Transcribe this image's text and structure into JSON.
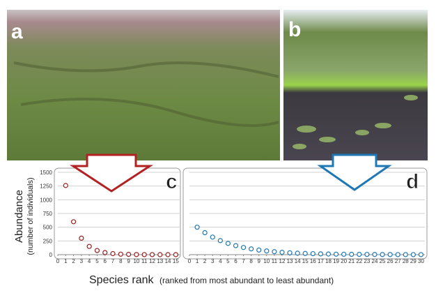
{
  "figure": {
    "photo_labels": [
      "a",
      "b"
    ],
    "xlabel": "Species rank",
    "xlabel_note": "(ranked from most abundant to least abundant)",
    "ylabel": "Abundance",
    "ylabel_note": "(number of individuals)"
  },
  "chart_data": [
    {
      "type": "line",
      "panel_label": "c",
      "x": [
        1,
        2,
        3,
        4,
        5,
        6,
        7,
        8,
        9,
        10,
        11,
        12,
        13,
        14,
        15
      ],
      "series": [
        {
          "color": "#9b1c1c",
          "values": [
            1260,
            600,
            300,
            150,
            75,
            38,
            19,
            9,
            5,
            2,
            1,
            1,
            0,
            0,
            0
          ]
        }
      ],
      "xlim": [
        0,
        15.5
      ],
      "xticks": [
        0,
        1,
        2,
        3,
        4,
        5,
        6,
        7,
        8,
        9,
        10,
        11,
        12,
        13,
        14,
        15
      ],
      "ylim": [
        0,
        1500
      ],
      "yticks": [
        0,
        250,
        500,
        750,
        1000,
        1250,
        1500
      ],
      "show_ytick_labels": true,
      "grid": true
    },
    {
      "type": "line",
      "panel_label": "d",
      "x": [
        1,
        2,
        3,
        4,
        5,
        6,
        7,
        8,
        9,
        10,
        11,
        12,
        13,
        14,
        15,
        16,
        17,
        18,
        19,
        20,
        21,
        22,
        23,
        24,
        25,
        26,
        27,
        28,
        29,
        30
      ],
      "series": [
        {
          "color": "#1f78b4",
          "values": [
            500,
            400,
            320,
            256,
            205,
            164,
            131,
            105,
            84,
            67,
            54,
            43,
            34,
            27,
            22,
            18,
            14,
            11,
            9,
            7,
            6,
            5,
            4,
            3,
            2,
            2,
            1,
            1,
            1,
            1
          ]
        }
      ],
      "xlim": [
        0,
        30.5
      ],
      "xticks": [
        0,
        1,
        2,
        3,
        4,
        5,
        6,
        7,
        8,
        9,
        10,
        11,
        12,
        13,
        14,
        15,
        16,
        17,
        18,
        19,
        20,
        21,
        22,
        23,
        24,
        25,
        26,
        27,
        28,
        29,
        30
      ],
      "ylim": [
        0,
        1500
      ],
      "yticks": [
        0,
        250,
        500,
        750,
        1000,
        1250,
        1500
      ],
      "show_ytick_labels": false,
      "grid": true
    }
  ]
}
